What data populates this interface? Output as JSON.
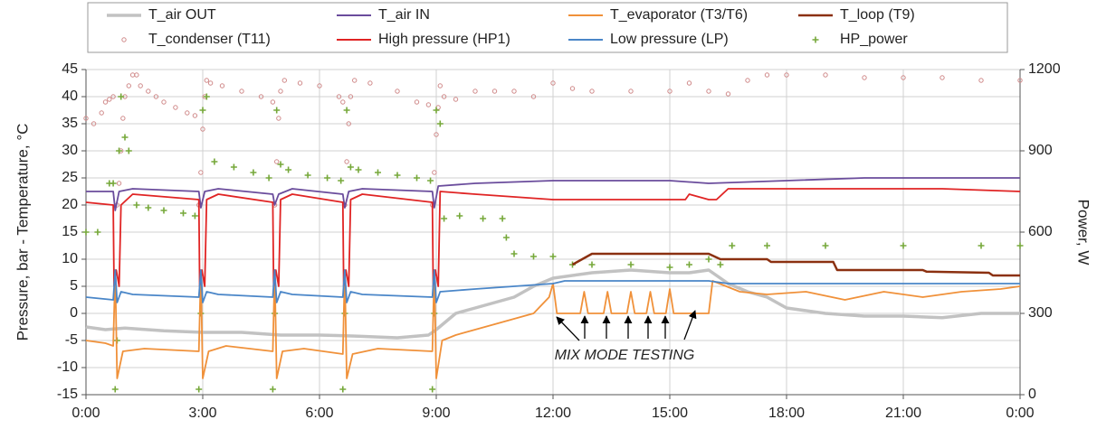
{
  "chart_data": {
    "type": "line",
    "ylabel": "Pressure, bar - Temperature, °C",
    "y2label": "Power, W",
    "annotation": "MIX MODE TESTING",
    "xlim": [
      0,
      24
    ],
    "xticks": [
      {
        "value": 0,
        "label": "0:00"
      },
      {
        "value": 3,
        "label": "3:00"
      },
      {
        "value": 6,
        "label": "6:00"
      },
      {
        "value": 9,
        "label": "9:00"
      },
      {
        "value": 12,
        "label": "12:00"
      },
      {
        "value": 15,
        "label": "15:00"
      },
      {
        "value": 18,
        "label": "18:00"
      },
      {
        "value": 21,
        "label": "21:00"
      },
      {
        "value": 24,
        "label": "0:00"
      }
    ],
    "ylim": [
      -15,
      45
    ],
    "yticks": [
      -15,
      -10,
      -5,
      0,
      5,
      10,
      15,
      20,
      25,
      30,
      35,
      40,
      45
    ],
    "y2lim": [
      0,
      1200
    ],
    "y2ticks": [
      0,
      300,
      600,
      900,
      1200
    ],
    "grid": true,
    "legend": "top",
    "series": [
      {
        "name": "T_air OUT",
        "color": "#c2c2c2",
        "style": "line",
        "x": [
          0,
          0.5,
          1,
          2,
          3,
          4,
          5,
          6,
          7,
          8,
          8.8,
          9,
          9.5,
          10,
          11,
          11.5,
          12,
          13,
          14,
          15,
          15.5,
          16,
          16.5,
          17,
          17.5,
          18,
          19,
          20,
          21,
          22,
          23,
          24
        ],
        "values": [
          -2.5,
          -3,
          -2.7,
          -3.2,
          -3.5,
          -3.5,
          -4,
          -4,
          -4.2,
          -4.5,
          -4,
          -3,
          0,
          1,
          3,
          5,
          6.5,
          7.5,
          8,
          7.5,
          7.5,
          8,
          5.5,
          4,
          3,
          1,
          0,
          -0.5,
          -0.5,
          -0.8,
          0,
          0
        ]
      },
      {
        "name": "T_air IN",
        "color": "#6a4c9c",
        "style": "line",
        "x": [
          0,
          0.7,
          0.75,
          0.85,
          1.2,
          2.9,
          2.95,
          3.05,
          3.4,
          4.8,
          4.85,
          4.95,
          5.3,
          6.6,
          6.65,
          6.75,
          7.1,
          8.9,
          8.95,
          9.05,
          10,
          12,
          13,
          15,
          16,
          18,
          20,
          22,
          24
        ],
        "values": [
          22.5,
          22.5,
          19,
          22.5,
          23,
          22.5,
          19.5,
          22.5,
          23,
          22,
          20,
          22,
          23,
          22,
          19.5,
          22.5,
          23,
          22.5,
          19.5,
          23.5,
          24,
          24.5,
          24.5,
          24.5,
          24,
          24.5,
          25,
          25,
          25
        ]
      },
      {
        "name": "T_evaporator (T3/T6)",
        "color": "#f0913a",
        "style": "line",
        "x": [
          0,
          0.5,
          0.7,
          0.75,
          0.8,
          0.95,
          1.5,
          2.9,
          2.95,
          3.0,
          3.15,
          3.6,
          4.8,
          4.85,
          4.9,
          5.05,
          5.6,
          6.6,
          6.65,
          6.7,
          6.85,
          7.5,
          8.9,
          8.95,
          9.0,
          9.15,
          9.5,
          10.5,
          11.5,
          11.9,
          12.0,
          12.1,
          12.7,
          12.8,
          12.9,
          13.3,
          13.4,
          13.5,
          13.9,
          14.0,
          14.1,
          14.4,
          14.5,
          14.6,
          14.9,
          15.0,
          15.1,
          16.0,
          16.1,
          16.8,
          17.5,
          18.5,
          19.5,
          20.5,
          21.5,
          22.5,
          23.5,
          24
        ],
        "values": [
          -5,
          -5.5,
          -6,
          8,
          -12,
          -7,
          -6.5,
          -7,
          8,
          -12,
          -7,
          -6,
          -7,
          8,
          -12,
          -7,
          -6.5,
          -7.5,
          8,
          -12,
          -7.5,
          -6.5,
          -7,
          8,
          -12,
          -5,
          -4,
          -2,
          0,
          3,
          5.5,
          0,
          0,
          4,
          0,
          0,
          4,
          0,
          0,
          4,
          0,
          0,
          4,
          0,
          0,
          4.5,
          0,
          0,
          6,
          4,
          3.5,
          4,
          2.5,
          4,
          3,
          4,
          4.5,
          5
        ]
      },
      {
        "name": "T_loop (T9)",
        "color": "#8b3010",
        "style": "line",
        "x": [
          12.5,
          13,
          16,
          16.3,
          17.5,
          17.6,
          19.2,
          19.3,
          20,
          21.5,
          21.6,
          23.2,
          23.3,
          24
        ],
        "values": [
          9,
          11,
          11,
          10,
          10,
          9.5,
          9.5,
          8,
          8,
          8,
          7.7,
          7.5,
          7,
          7
        ]
      },
      {
        "name": "T_condenser (T11)",
        "color": "#d08a8a",
        "style": "circle",
        "x": [
          0,
          0.2,
          0.4,
          0.5,
          0.6,
          0.7,
          0.8,
          0.85,
          0.9,
          0.95,
          1.0,
          1.1,
          1.2,
          1.3,
          1.4,
          1.6,
          1.8,
          2.0,
          2.3,
          2.6,
          2.8,
          2.9,
          2.95,
          3.0,
          3.05,
          3.1,
          3.2,
          3.5,
          4.0,
          4.5,
          4.8,
          4.85,
          4.9,
          4.95,
          5.0,
          5.1,
          5.5,
          6.0,
          6.5,
          6.6,
          6.65,
          6.7,
          6.75,
          6.8,
          6.9,
          7.3,
          8.0,
          8.5,
          8.8,
          8.9,
          8.95,
          9.0,
          9.05,
          9.1,
          9.2,
          9.5,
          10,
          10.5,
          11,
          11.5,
          12,
          12.5,
          13,
          14,
          15,
          15.5,
          16,
          16.5,
          17,
          17.5,
          18,
          19,
          20,
          21,
          22,
          23,
          24
        ],
        "values": [
          36,
          35,
          37,
          39,
          39.5,
          40,
          20,
          24,
          30,
          36,
          40,
          42,
          44,
          44,
          42,
          41,
          40,
          39,
          38,
          37,
          36.5,
          20,
          26,
          34,
          40,
          43,
          42.5,
          42,
          41,
          40,
          39,
          20,
          28,
          36,
          41,
          43,
          42.5,
          42,
          40,
          39,
          20,
          28,
          35,
          40,
          43,
          42.5,
          41,
          39,
          38.5,
          20,
          26,
          33,
          38,
          42,
          40,
          39.5,
          41,
          41,
          41,
          40,
          42.5,
          41.5,
          41,
          41,
          41,
          42.5,
          41,
          40.5,
          43,
          44,
          44,
          44,
          43.5,
          43.5,
          43.5,
          43,
          43
        ]
      },
      {
        "name": "High pressure (HP1)",
        "color": "#e02424",
        "style": "line",
        "x": [
          0,
          0.7,
          0.72,
          0.78,
          0.85,
          0.9,
          1.2,
          2.9,
          2.92,
          2.98,
          3.05,
          3.1,
          3.4,
          4.8,
          4.82,
          4.88,
          4.95,
          5.0,
          5.3,
          6.6,
          6.62,
          6.68,
          6.75,
          6.8,
          7.1,
          8.9,
          8.92,
          8.98,
          9.05,
          9.1,
          10,
          12,
          13,
          14,
          15.4,
          15.5,
          16,
          16.2,
          16.5,
          18,
          20,
          22,
          24
        ],
        "values": [
          20.5,
          20,
          5,
          8,
          5,
          20,
          22,
          21,
          5,
          8,
          5,
          21,
          22,
          20.5,
          5,
          8,
          5,
          21,
          22,
          20.5,
          5,
          8,
          5,
          21,
          22,
          20.5,
          5,
          8,
          5,
          22.5,
          22,
          21,
          21,
          21,
          21,
          22,
          21,
          21,
          23,
          23,
          23,
          23,
          22.5
        ]
      },
      {
        "name": "Low pressure (LP)",
        "color": "#4a86c8",
        "style": "line",
        "x": [
          0,
          0.7,
          0.75,
          0.8,
          0.9,
          1.2,
          2.9,
          2.95,
          3.0,
          3.1,
          3.4,
          4.8,
          4.85,
          4.9,
          5.0,
          5.3,
          6.6,
          6.65,
          6.7,
          6.8,
          7.1,
          8.9,
          8.95,
          9.0,
          9.1,
          10,
          11,
          12,
          12.3,
          14,
          16,
          16.5,
          18,
          20,
          22,
          24
        ],
        "values": [
          3,
          2.5,
          8,
          2,
          4,
          3.5,
          3,
          8,
          2,
          4,
          3.5,
          3,
          8,
          2,
          4,
          3.5,
          3,
          8,
          2,
          4,
          3.5,
          3,
          8,
          2,
          4,
          4.5,
          5,
          5.5,
          6,
          6,
          6,
          5.5,
          5.5,
          5.5,
          5.5,
          5.5
        ]
      },
      {
        "name": "HP_power",
        "color": "#76a83a",
        "style": "plus",
        "axis": "y2",
        "x": [
          0,
          0.3,
          0.6,
          0.7,
          0.75,
          0.8,
          0.85,
          0.9,
          1.0,
          1.1,
          1.3,
          1.6,
          2.0,
          2.5,
          2.8,
          2.9,
          2.95,
          3.0,
          3.1,
          3.3,
          3.8,
          4.3,
          4.7,
          4.8,
          4.85,
          4.9,
          5.0,
          5.2,
          5.7,
          6.2,
          6.55,
          6.6,
          6.65,
          6.7,
          6.8,
          7.0,
          7.5,
          8.0,
          8.5,
          8.85,
          8.9,
          8.95,
          9.0,
          9.1,
          9.2,
          9.6,
          10.2,
          10.7,
          10.8,
          11.0,
          11.5,
          12.0,
          12.5,
          13,
          14,
          15,
          15.5,
          16,
          16.3,
          16.6,
          17.5,
          19,
          21,
          23,
          24
        ],
        "values": [
          600,
          600,
          780,
          780,
          20,
          200,
          900,
          1100,
          950,
          900,
          700,
          690,
          680,
          670,
          660,
          20,
          300,
          1050,
          1100,
          860,
          840,
          820,
          800,
          20,
          300,
          1050,
          850,
          830,
          810,
          800,
          790,
          20,
          300,
          1050,
          840,
          830,
          820,
          810,
          800,
          790,
          20,
          300,
          1050,
          1000,
          650,
          660,
          650,
          650,
          580,
          520,
          510,
          510,
          480,
          480,
          480,
          470,
          480,
          500,
          480,
          550,
          550,
          550,
          550,
          550,
          550
        ]
      }
    ]
  }
}
